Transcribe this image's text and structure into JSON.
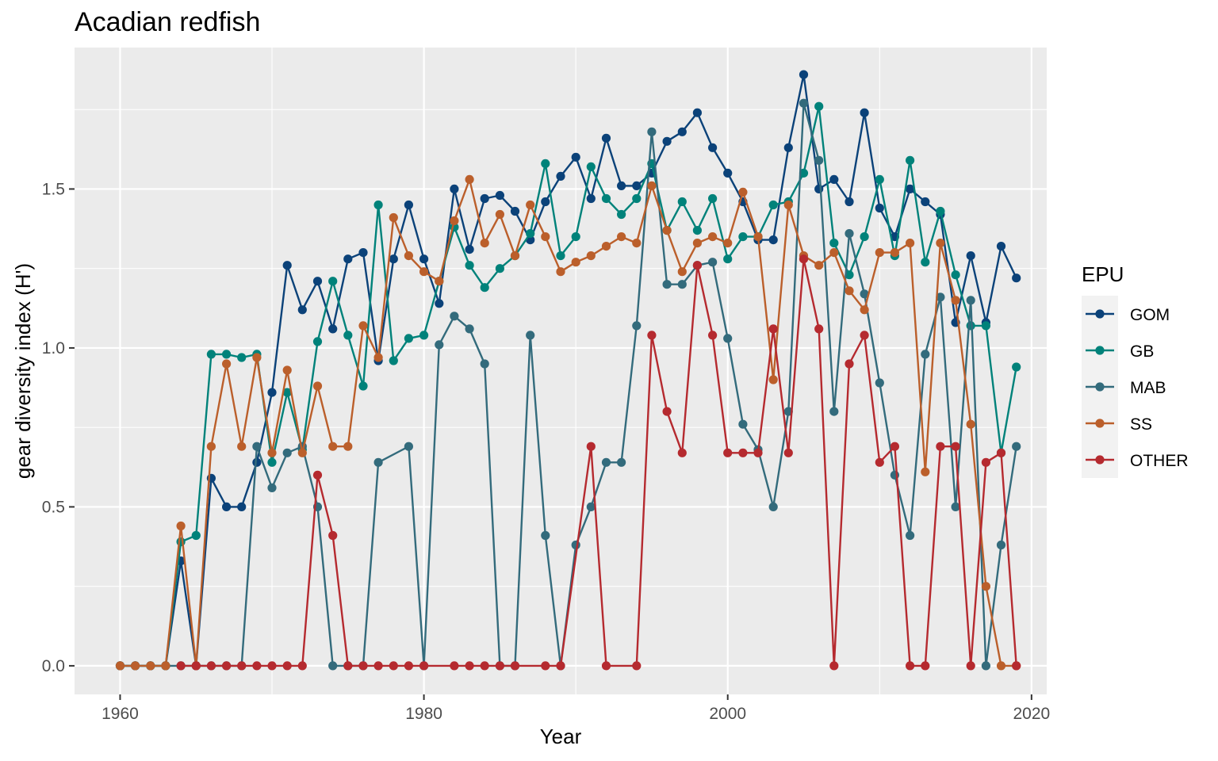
{
  "chart_data": {
    "type": "line",
    "title": "Acadian redfish",
    "xlabel": "Year",
    "ylabel": "gear diversity index (H')",
    "xlim": [
      1957,
      2021
    ],
    "ylim": [
      -0.09,
      1.945
    ],
    "x_ticks": [
      1960,
      1980,
      2000,
      2020
    ],
    "x_tick_labels": [
      "1960",
      "1980",
      "2000",
      "2020"
    ],
    "y_ticks": [
      0,
      0.5,
      1,
      1.5
    ],
    "y_tick_labels": [
      "0.0",
      "0.5",
      "1.0",
      "1.5"
    ],
    "grid": true,
    "legend": {
      "title": "EPU",
      "position": "right"
    },
    "series": [
      {
        "name": "GOM",
        "color": "#0b4279",
        "x": [
          1960,
          1961,
          1962,
          1963,
          1964,
          1965,
          1966,
          1967,
          1968,
          1969,
          1970,
          1971,
          1972,
          1973,
          1974,
          1975,
          1976,
          1977,
          1978,
          1979,
          1980,
          1981,
          1982,
          1983,
          1984,
          1985,
          1986,
          1987,
          1988,
          1989,
          1990,
          1991,
          1992,
          1993,
          1994,
          1995,
          1996,
          1997,
          1998,
          1999,
          2000,
          2001,
          2002,
          2003,
          2004,
          2005,
          2006,
          2007,
          2008,
          2009,
          2010,
          2011,
          2012,
          2013,
          2014,
          2015,
          2016,
          2017,
          2018,
          2019
        ],
        "y": [
          0,
          0,
          0,
          0,
          0.33,
          0,
          0.59,
          0.5,
          0.5,
          0.64,
          0.86,
          1.26,
          1.12,
          1.21,
          1.06,
          1.28,
          1.3,
          0.96,
          1.28,
          1.45,
          1.28,
          1.14,
          1.5,
          1.31,
          1.47,
          1.48,
          1.43,
          1.34,
          1.46,
          1.54,
          1.6,
          1.47,
          1.66,
          1.51,
          1.51,
          1.55,
          1.65,
          1.68,
          1.74,
          1.63,
          1.55,
          1.46,
          1.34,
          1.34,
          1.63,
          1.86,
          1.5,
          1.53,
          1.46,
          1.74,
          1.44,
          1.35,
          1.5,
          1.46,
          1.42,
          1.08,
          1.29,
          1.08,
          1.32,
          1.22
        ]
      },
      {
        "name": "GB",
        "color": "#00827a",
        "x": [
          1960,
          1961,
          1962,
          1963,
          1964,
          1965,
          1966,
          1967,
          1968,
          1969,
          1970,
          1971,
          1972,
          1973,
          1974,
          1975,
          1976,
          1977,
          1978,
          1979,
          1980,
          1981,
          1982,
          1983,
          1984,
          1985,
          1986,
          1987,
          1988,
          1989,
          1990,
          1991,
          1992,
          1993,
          1994,
          1995,
          1996,
          1997,
          1998,
          1999,
          2000,
          2001,
          2002,
          2003,
          2004,
          2005,
          2006,
          2007,
          2008,
          2009,
          2010,
          2011,
          2012,
          2013,
          2014,
          2015,
          2016,
          2017,
          2018,
          2019
        ],
        "y": [
          0,
          0,
          0,
          0,
          0.39,
          0.41,
          0.98,
          0.98,
          0.97,
          0.98,
          0.64,
          0.86,
          0.68,
          1.02,
          1.21,
          1.04,
          0.88,
          1.45,
          0.96,
          1.03,
          1.04,
          1.21,
          1.38,
          1.26,
          1.19,
          1.25,
          1.29,
          1.36,
          1.58,
          1.29,
          1.35,
          1.57,
          1.47,
          1.42,
          1.47,
          1.58,
          1.37,
          1.46,
          1.37,
          1.47,
          1.28,
          1.35,
          1.35,
          1.45,
          1.46,
          1.55,
          1.76,
          1.33,
          1.23,
          1.35,
          1.53,
          1.29,
          1.59,
          1.27,
          1.43,
          1.23,
          1.07,
          1.07,
          0.67,
          0.94
        ]
      },
      {
        "name": "MAB",
        "color": "#336b7c",
        "x": [
          1960,
          1961,
          1962,
          1963,
          1964,
          1965,
          1966,
          1967,
          1968,
          1969,
          1970,
          1971,
          1972,
          1973,
          1974,
          1975,
          1976,
          1977,
          1979,
          1980,
          1981,
          1982,
          1983,
          1984,
          1985,
          1986,
          1987,
          1988,
          1989,
          1990,
          1991,
          1992,
          1993,
          1994,
          1995,
          1996,
          1997,
          1998,
          1999,
          2000,
          2001,
          2002,
          2003,
          2004,
          2005,
          2006,
          2007,
          2008,
          2009,
          2010,
          2011,
          2012,
          2013,
          2014,
          2015,
          2016,
          2017,
          2018,
          2019
        ],
        "y": [
          0,
          0,
          0,
          0,
          0,
          0,
          0,
          0,
          0,
          0.69,
          0.56,
          0.67,
          0.69,
          0.5,
          0,
          0,
          0,
          0.64,
          0.69,
          0,
          1.01,
          1.1,
          1.06,
          0.95,
          0,
          0,
          1.04,
          0.41,
          0,
          0.38,
          0.5,
          0.64,
          0.64,
          1.07,
          1.68,
          1.2,
          1.2,
          1.26,
          1.27,
          1.03,
          0.76,
          0.68,
          0.5,
          0.8,
          1.77,
          1.59,
          0.8,
          1.36,
          1.17,
          0.89,
          0.6,
          0.41,
          0.98,
          1.16,
          0.5,
          1.15,
          0,
          0.38,
          0.69
        ]
      },
      {
        "name": "SS",
        "color": "#bb5f2b",
        "x": [
          1960,
          1961,
          1962,
          1963,
          1964,
          1965,
          1966,
          1967,
          1968,
          1969,
          1970,
          1971,
          1972,
          1973,
          1974,
          1975,
          1976,
          1977,
          1978,
          1979,
          1980,
          1981,
          1982,
          1983,
          1984,
          1985,
          1986,
          1987,
          1988,
          1989,
          1990,
          1991,
          1992,
          1993,
          1994,
          1995,
          1996,
          1997,
          1998,
          1999,
          2000,
          2001,
          2002,
          2003,
          2004,
          2005,
          2006,
          2007,
          2008,
          2009,
          2010,
          2011,
          2012,
          2013,
          2014,
          2015,
          2016,
          2017,
          2018,
          2019
        ],
        "y": [
          0,
          0,
          0,
          0,
          0.44,
          0,
          0.69,
          0.95,
          0.69,
          0.97,
          0.67,
          0.93,
          0.67,
          0.88,
          0.69,
          0.69,
          1.07,
          0.97,
          1.41,
          1.29,
          1.24,
          1.21,
          1.4,
          1.53,
          1.33,
          1.42,
          1.29,
          1.45,
          1.35,
          1.24,
          1.27,
          1.29,
          1.32,
          1.35,
          1.33,
          1.51,
          1.37,
          1.24,
          1.33,
          1.35,
          1.33,
          1.49,
          1.35,
          0.9,
          1.45,
          1.29,
          1.26,
          1.3,
          1.18,
          1.12,
          1.3,
          1.3,
          1.33,
          0.61,
          1.33,
          1.15,
          0.76,
          0.25,
          0,
          0
        ]
      },
      {
        "name": "OTHER",
        "color": "#b52a2f",
        "x": [
          1964,
          1965,
          1966,
          1967,
          1968,
          1969,
          1970,
          1971,
          1972,
          1973,
          1974,
          1975,
          1976,
          1977,
          1978,
          1979,
          1980,
          1982,
          1983,
          1984,
          1985,
          1986,
          1988,
          1989,
          1991,
          1992,
          1994,
          1995,
          1996,
          1997,
          1998,
          1999,
          2000,
          2001,
          2002,
          2003,
          2004,
          2005,
          2006,
          2007,
          2008,
          2009,
          2010,
          2011,
          2012,
          2013,
          2014,
          2015,
          2016,
          2017,
          2018,
          2019
        ],
        "y": [
          0,
          0,
          0,
          0,
          0,
          0,
          0,
          0,
          0,
          0.6,
          0.41,
          0,
          0,
          0,
          0,
          0,
          0,
          0,
          0,
          0,
          0,
          0,
          0,
          0,
          0.69,
          0,
          0,
          1.04,
          0.8,
          0.67,
          1.26,
          1.04,
          0.67,
          0.67,
          0.67,
          1.06,
          0.67,
          1.28,
          1.06,
          0,
          0.95,
          1.04,
          0.64,
          0.69,
          0,
          0,
          0.69,
          0.69,
          0,
          0.64,
          0.67,
          0
        ]
      }
    ]
  }
}
